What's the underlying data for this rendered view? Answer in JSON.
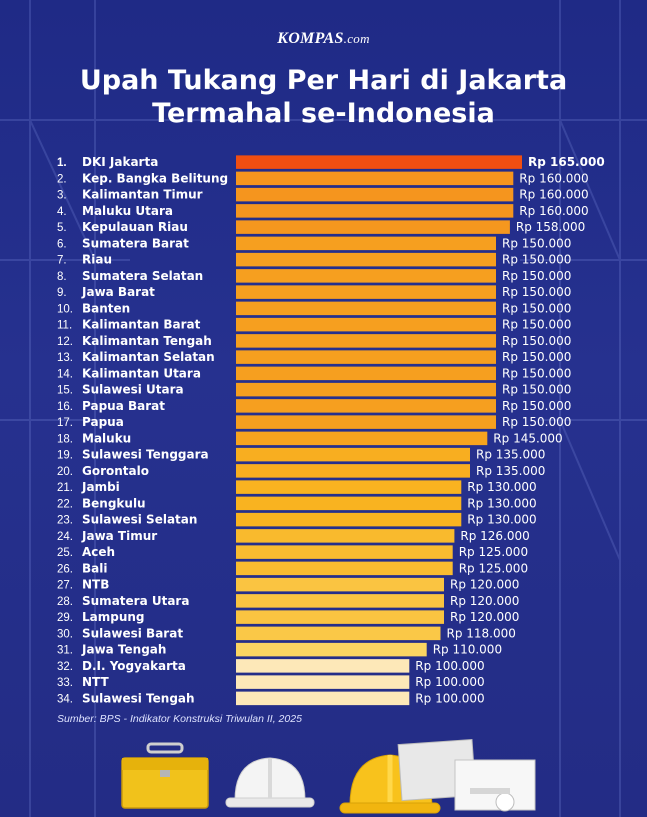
{
  "brand": {
    "name": "KOMPAS",
    "domain": ".com"
  },
  "title": {
    "line1": "Upah Tukang Per Hari di Jakarta",
    "line2": "Termahal se-Indonesia"
  },
  "source": "Sumber: BPS - Indikator Konstruksi Triwulan II, 2025",
  "colors": {
    "top": "#f04e12",
    "high": "#f5951e",
    "mid": "#f9b320",
    "low": "#fbd765",
    "lowest": "#fde8b8",
    "background": "#24308c"
  },
  "chart_data": {
    "type": "bar",
    "orientation": "horizontal",
    "categories": [
      "DKI Jakarta",
      "Kep. Bangka Belitung",
      "Kalimantan Timur",
      "Maluku Utara",
      "Kepulauan Riau",
      "Sumatera Barat",
      "Riau",
      "Sumatera Selatan",
      "Jawa Barat",
      "Banten",
      "Kalimantan Barat",
      "Kalimantan Tengah",
      "Kalimantan Selatan",
      "Kalimantan Utara",
      "Sulawesi Utara",
      "Papua Barat",
      "Papua",
      "Maluku",
      "Sulawesi Tenggara",
      "Gorontalo",
      "Jambi",
      "Bengkulu",
      "Sulawesi Selatan",
      "Jawa Timur",
      "Aceh",
      "Bali",
      "NTB",
      "Sumatera Utara",
      "Lampung",
      "Sulawesi Barat",
      "Jawa Tengah",
      "D.I. Yogyakarta",
      "NTT",
      "Sulawesi Tengah"
    ],
    "values": [
      165000,
      160000,
      160000,
      160000,
      158000,
      150000,
      150000,
      150000,
      150000,
      150000,
      150000,
      150000,
      150000,
      150000,
      150000,
      150000,
      150000,
      145000,
      135000,
      135000,
      130000,
      130000,
      130000,
      126000,
      125000,
      125000,
      120000,
      120000,
      120000,
      118000,
      110000,
      100000,
      100000,
      100000
    ],
    "value_labels": [
      "Rp 165.000",
      "Rp 160.000",
      "Rp 160.000",
      "Rp 160.000",
      "Rp 158.000",
      "Rp 150.000",
      "Rp 150.000",
      "Rp 150.000",
      "Rp 150.000",
      "Rp 150.000",
      "Rp 150.000",
      "Rp 150.000",
      "Rp 150.000",
      "Rp 150.000",
      "Rp 150.000",
      "Rp 150.000",
      "Rp 150.000",
      "Rp 145.000",
      "Rp 135.000",
      "Rp 135.000",
      "Rp 130.000",
      "Rp 130.000",
      "Rp 130.000",
      "Rp 126.000",
      "Rp 125.000",
      "Rp 125.000",
      "Rp 120.000",
      "Rp 120.000",
      "Rp 120.000",
      "Rp 118.000",
      "Rp 110.000",
      "Rp 100.000",
      "Rp 100.000",
      "Rp 100.000"
    ],
    "ranks": [
      "1.",
      "2.",
      "3.",
      "4.",
      "5.",
      "6.",
      "7.",
      "8.",
      "9.",
      "10.",
      "11.",
      "12.",
      "13.",
      "14.",
      "15.",
      "16.",
      "17.",
      "18.",
      "19.",
      "20.",
      "21.",
      "22.",
      "23.",
      "24.",
      "25.",
      "26.",
      "27.",
      "28.",
      "29.",
      "30.",
      "31.",
      "32.",
      "33.",
      "34."
    ],
    "title": "Upah Tukang Per Hari di Jakarta Termahal se-Indonesia",
    "xlabel": "",
    "ylabel": "",
    "xlim": [
      0,
      165000
    ],
    "grid": false,
    "legend": "none"
  },
  "illustration": {
    "items": [
      "toolbox-icon",
      "white-helmet-icon",
      "yellow-helmet-icon",
      "blueprint-icon"
    ]
  }
}
